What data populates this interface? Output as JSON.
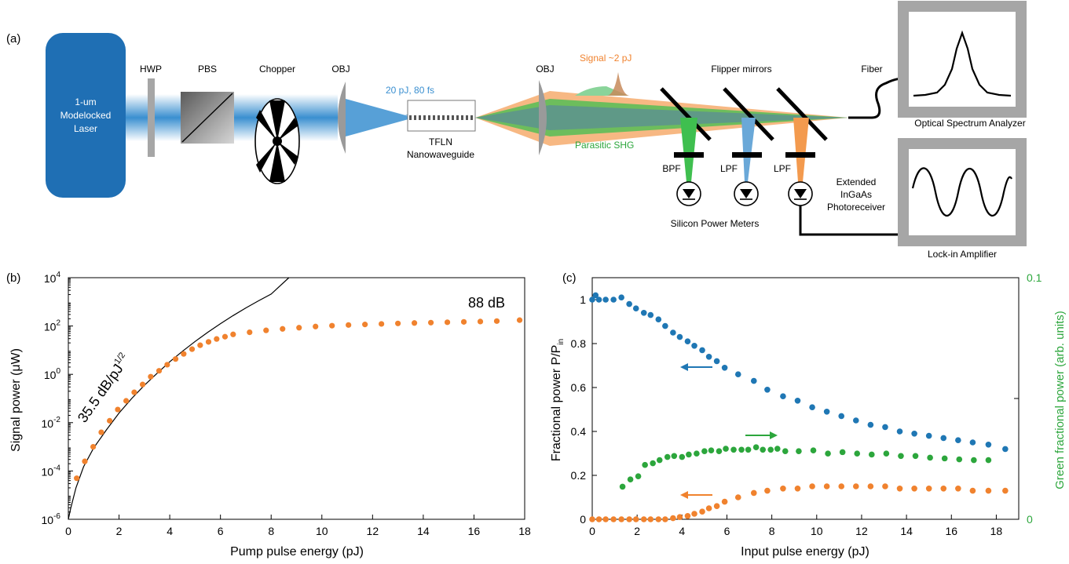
{
  "panel_a": {
    "panel_label": "(a)",
    "laser": [
      "1-um",
      "Modelocked",
      "Laser"
    ],
    "hwp": "HWP",
    "pbs": "PBS",
    "chopper": "Chopper",
    "obj_in": "OBJ",
    "pulse": "20 pJ, 80 fs",
    "tfln": [
      "TFLN",
      "Nanowaveguide"
    ],
    "obj_out": "OBJ",
    "signal": "Signal ~2 pJ",
    "parasitic": "Parasitic SHG",
    "flipper": "Flipper mirrors",
    "fiber": "Fiber",
    "osa": "Optical Spectrum Analyzer",
    "bpf": "BPF",
    "lpf1": "LPF",
    "lpf2": "LPF",
    "detector": [
      "Extended",
      "InGaAs",
      "Photoreceiver"
    ],
    "power_meters": "Silicon Power Meters",
    "lockin": "Lock-in Amplifier",
    "colors": {
      "laser_box": "#1f6fb4",
      "beam": "#3a8fd0",
      "signal": "#f39a4e",
      "shg": "#3fbf4f",
      "instrument": "#a6a6a6"
    }
  },
  "panel_b": {
    "panel_label": "(b)",
    "annotation_slope": "35.5 dB/pJ",
    "annotation_slope_sup": "1/2",
    "annotation_gain": "88 dB",
    "color_points": "#f0822e",
    "color_fit": "#000000"
  },
  "panel_c": {
    "panel_label": "(c)",
    "colors": {
      "blue": "#1f77b4",
      "green": "#2ca63c",
      "orange": "#f0822e"
    }
  },
  "chart_data": [
    {
      "type": "scatter",
      "panel": "b",
      "xlabel": "Pump pulse energy (pJ)",
      "ylabel": "Signal power (μW)",
      "xlim": [
        0,
        18
      ],
      "ylim": [
        1e-06,
        10000.0
      ],
      "yscale": "log",
      "x_ticks": [
        "0",
        "2",
        "4",
        "6",
        "8",
        "10",
        "12",
        "14",
        "16",
        "18"
      ],
      "y_ticks": [
        {
          "base": "10",
          "exp": "-6"
        },
        {
          "base": "10",
          "exp": "-4"
        },
        {
          "base": "10",
          "exp": "-2"
        },
        {
          "base": "10",
          "exp": "0"
        },
        {
          "base": "10",
          "exp": "2"
        },
        {
          "base": "10",
          "exp": "4"
        }
      ],
      "series": [
        {
          "type": "scatter",
          "x": [
            0.33,
            0.65,
            0.98,
            1.3,
            1.63,
            1.95,
            2.28,
            2.6,
            2.93,
            3.25,
            3.58,
            3.9,
            4.23,
            4.55,
            4.88,
            5.2,
            5.53,
            5.85,
            6.18,
            6.5,
            7.15,
            7.8,
            8.45,
            9.1,
            9.75,
            10.4,
            11.05,
            11.7,
            12.35,
            13.0,
            13.65,
            14.3,
            14.95,
            15.6,
            16.25,
            16.9,
            17.8
          ],
          "y": [
            5e-05,
            0.00025,
            0.001,
            0.004,
            0.012,
            0.035,
            0.08,
            0.18,
            0.38,
            0.8,
            1.4,
            2.5,
            4.3,
            7.0,
            11.0,
            16.0,
            22.0,
            29.0,
            36.0,
            45.0,
            55.0,
            66.0,
            76.0,
            85.0,
            95.0,
            103.0,
            110.0,
            116.0,
            122.0,
            128.0,
            133.0,
            138.0,
            143.0,
            148.0,
            153.0,
            160.0,
            175.0
          ]
        },
        {
          "type": "line",
          "x": [
            0.0,
            0.1,
            0.3,
            0.6,
            1.0,
            1.5,
            2.0,
            2.5,
            3.0,
            3.5,
            4.0,
            4.5,
            5.0,
            5.5,
            6.0,
            6.5,
            7.0,
            7.5,
            8.0,
            8.7
          ],
          "y": [
            1e-06,
            3e-06,
            2e-05,
            0.00015,
            0.0009,
            0.005,
            0.025,
            0.1,
            0.35,
            1.1,
            3.3,
            9.0,
            23.0,
            55.0,
            125.0,
            270.0,
            560.0,
            1100.0,
            2100.0,
            10000.0
          ]
        }
      ]
    },
    {
      "type": "scatter",
      "panel": "c",
      "xlabel": "Input pulse energy (pJ)",
      "ylabel": "Fractional power P/P",
      "ylabel_sub": "in",
      "ylabel_right": "Green fractional power (arb. units)",
      "xlim": [
        0,
        19
      ],
      "ylim": [
        0,
        1.1
      ],
      "ylim_right": [
        0,
        0.1
      ],
      "x_ticks": [
        "0",
        "2",
        "4",
        "6",
        "8",
        "10",
        "12",
        "14",
        "16",
        "18"
      ],
      "y_ticks": [
        "0",
        "0.2",
        "0.4",
        "0.6",
        "0.8",
        "1"
      ],
      "y_ticks_right": [
        "0",
        "0.1"
      ],
      "series": [
        {
          "axis": "left",
          "color": "blue",
          "x": [
            0.0,
            0.15,
            0.3,
            0.6,
            0.95,
            1.3,
            1.65,
            1.95,
            2.3,
            2.6,
            2.95,
            3.25,
            3.6,
            3.9,
            4.25,
            4.55,
            4.9,
            5.2,
            5.55,
            5.9,
            6.5,
            7.2,
            7.8,
            8.5,
            9.15,
            9.8,
            10.45,
            11.1,
            11.75,
            12.4,
            13.05,
            13.7,
            14.35,
            15.0,
            15.65,
            16.3,
            16.95,
            17.65,
            18.4
          ],
          "y": [
            1.0,
            1.02,
            1.0,
            1.0,
            1.0,
            1.01,
            0.98,
            0.96,
            0.94,
            0.93,
            0.91,
            0.88,
            0.85,
            0.83,
            0.81,
            0.79,
            0.77,
            0.74,
            0.72,
            0.69,
            0.66,
            0.63,
            0.59,
            0.56,
            0.54,
            0.51,
            0.49,
            0.47,
            0.45,
            0.43,
            0.42,
            0.4,
            0.39,
            0.38,
            0.37,
            0.36,
            0.35,
            0.34,
            0.32
          ]
        },
        {
          "axis": "right",
          "color": "green",
          "x": [
            1.35,
            1.7,
            2.05,
            2.35,
            2.7,
            3.0,
            3.35,
            3.65,
            4.0,
            4.3,
            4.65,
            5.0,
            5.3,
            5.65,
            5.95,
            6.3,
            6.65,
            6.95,
            7.3,
            7.6,
            7.95,
            8.25,
            8.6,
            9.2,
            9.85,
            10.5,
            11.15,
            11.8,
            12.45,
            13.1,
            13.75,
            14.4,
            15.05,
            15.7,
            16.35,
            17.0,
            17.65
          ],
          "y": [
            0.0135,
            0.0165,
            0.0178,
            0.0225,
            0.0232,
            0.0245,
            0.0258,
            0.0262,
            0.0258,
            0.0268,
            0.0272,
            0.0282,
            0.0285,
            0.0282,
            0.0292,
            0.0288,
            0.0288,
            0.0288,
            0.0298,
            0.0288,
            0.0288,
            0.0292,
            0.0282,
            0.0282,
            0.0285,
            0.0272,
            0.0278,
            0.0272,
            0.0268,
            0.0272,
            0.0262,
            0.0262,
            0.0255,
            0.0252,
            0.0248,
            0.0245,
            0.0245
          ]
        },
        {
          "axis": "left",
          "color": "orange",
          "x": [
            0.0,
            0.3,
            0.6,
            0.95,
            1.3,
            1.65,
            1.95,
            2.3,
            2.6,
            2.95,
            3.25,
            3.6,
            3.9,
            4.25,
            4.55,
            4.9,
            5.2,
            5.55,
            5.9,
            6.5,
            7.2,
            7.8,
            8.5,
            9.15,
            9.8,
            10.45,
            11.1,
            11.75,
            12.4,
            13.05,
            13.7,
            14.35,
            15.0,
            15.65,
            16.3,
            16.95,
            17.65,
            18.4
          ],
          "y": [
            0.0,
            0.0,
            0.0,
            0.0,
            0.0,
            0.0,
            0.0,
            0.0,
            0.0,
            0.0,
            0.0,
            0.005,
            0.01,
            0.015,
            0.025,
            0.035,
            0.05,
            0.06,
            0.08,
            0.1,
            0.12,
            0.13,
            0.14,
            0.14,
            0.15,
            0.15,
            0.15,
            0.15,
            0.15,
            0.15,
            0.14,
            0.14,
            0.14,
            0.14,
            0.14,
            0.13,
            0.13,
            0.13
          ]
        }
      ]
    }
  ]
}
